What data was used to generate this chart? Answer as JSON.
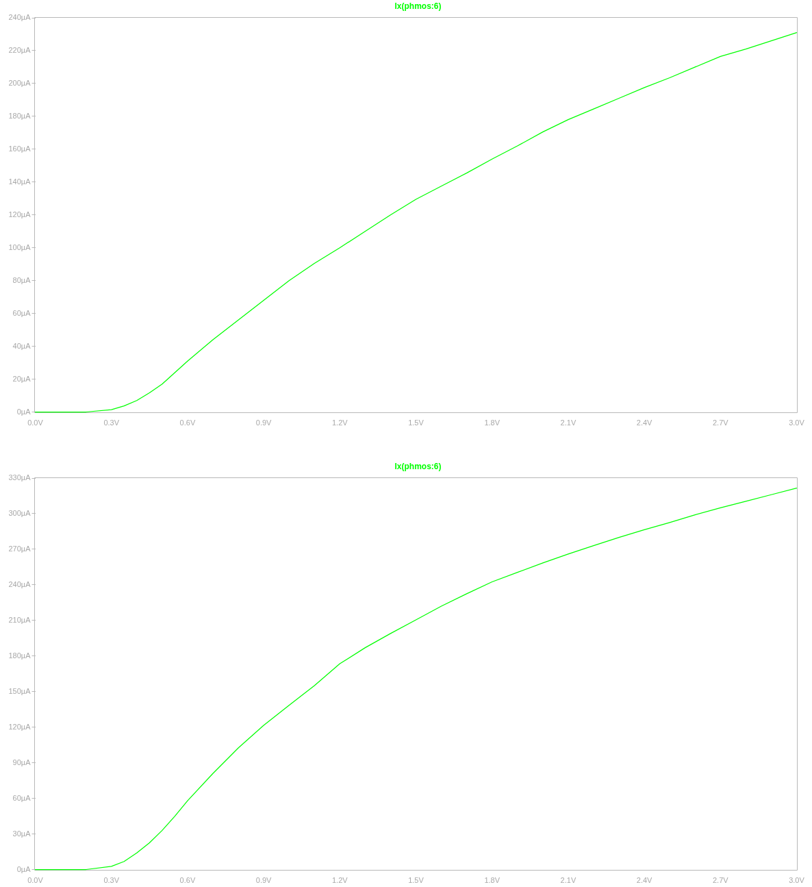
{
  "chart_data": [
    {
      "type": "line",
      "legend": "top",
      "grid": false,
      "x": [
        0,
        0.1,
        0.2,
        0.3,
        0.35,
        0.4,
        0.45,
        0.5,
        0.55,
        0.6,
        0.7,
        0.8,
        0.9,
        1.0,
        1.1,
        1.2,
        1.3,
        1.4,
        1.5,
        1.6,
        1.7,
        1.8,
        1.9,
        2.0,
        2.1,
        2.2,
        2.3,
        2.4,
        2.5,
        2.6,
        2.7,
        2.8,
        2.9,
        3.0
      ],
      "series": [
        {
          "name": "Ix(phmos:6)",
          "color": "#00ff00",
          "values": [
            0,
            0,
            0,
            1.4,
            3.7,
            7,
            11.7,
            17,
            24,
            31,
            44,
            56,
            68,
            80,
            90.5,
            100,
            110,
            120,
            129.5,
            137.5,
            145.5,
            154,
            162,
            170.5,
            178,
            184.5,
            191,
            197.5,
            203.5,
            210,
            216.5,
            221,
            226,
            231
          ]
        }
      ],
      "xlim": [
        0,
        3
      ],
      "xticks": [
        {
          "value": 0,
          "label": "0.0V"
        },
        {
          "value": 0.3,
          "label": "0.3V"
        },
        {
          "value": 0.6,
          "label": "0.6V"
        },
        {
          "value": 0.9,
          "label": "0.9V"
        },
        {
          "value": 1.2,
          "label": "1.2V"
        },
        {
          "value": 1.5,
          "label": "1.5V"
        },
        {
          "value": 1.8,
          "label": "1.8V"
        },
        {
          "value": 2.1,
          "label": "2.1V"
        },
        {
          "value": 2.4,
          "label": "2.4V"
        },
        {
          "value": 2.7,
          "label": "2.7V"
        },
        {
          "value": 3.0,
          "label": "3.0V"
        }
      ],
      "ylim": [
        0,
        240
      ],
      "yticks": [
        {
          "value": 0,
          "label": "0µA"
        },
        {
          "value": 20,
          "label": "20µA"
        },
        {
          "value": 40,
          "label": "40µA"
        },
        {
          "value": 60,
          "label": "60µA"
        },
        {
          "value": 80,
          "label": "80µA"
        },
        {
          "value": 100,
          "label": "100µA"
        },
        {
          "value": 120,
          "label": "120µA"
        },
        {
          "value": 140,
          "label": "140µA"
        },
        {
          "value": 160,
          "label": "160µA"
        },
        {
          "value": 180,
          "label": "180µA"
        },
        {
          "value": 200,
          "label": "200µA"
        },
        {
          "value": 220,
          "label": "220µA"
        },
        {
          "value": 240,
          "label": "240µA"
        }
      ]
    },
    {
      "type": "line",
      "legend": "top",
      "grid": false,
      "x": [
        0,
        0.1,
        0.2,
        0.3,
        0.35,
        0.4,
        0.45,
        0.5,
        0.55,
        0.6,
        0.7,
        0.8,
        0.9,
        1.0,
        1.1,
        1.2,
        1.3,
        1.4,
        1.5,
        1.6,
        1.7,
        1.8,
        1.9,
        2.0,
        2.1,
        2.2,
        2.3,
        2.4,
        2.5,
        2.6,
        2.7,
        2.8,
        2.9,
        3.0
      ],
      "series": [
        {
          "name": "Ix(phmos:6)",
          "color": "#00ff00",
          "values": [
            0,
            0,
            0,
            2.7,
            6.8,
            14,
            22.5,
            33,
            45,
            58,
            81,
            102.5,
            121.5,
            138.5,
            155,
            173.5,
            187,
            199,
            210.5,
            222,
            232.5,
            242.5,
            250.5,
            258.5,
            266,
            273,
            280,
            286.5,
            292.5,
            299,
            305,
            310.5,
            316,
            321.5
          ]
        }
      ],
      "xlim": [
        0,
        3
      ],
      "xticks": [
        {
          "value": 0,
          "label": "0.0V"
        },
        {
          "value": 0.3,
          "label": "0.3V"
        },
        {
          "value": 0.6,
          "label": "0.6V"
        },
        {
          "value": 0.9,
          "label": "0.9V"
        },
        {
          "value": 1.2,
          "label": "1.2V"
        },
        {
          "value": 1.5,
          "label": "1.5V"
        },
        {
          "value": 1.8,
          "label": "1.8V"
        },
        {
          "value": 2.1,
          "label": "2.1V"
        },
        {
          "value": 2.4,
          "label": "2.4V"
        },
        {
          "value": 2.7,
          "label": "2.7V"
        },
        {
          "value": 3.0,
          "label": "3.0V"
        }
      ],
      "ylim": [
        0,
        330
      ],
      "yticks": [
        {
          "value": 0,
          "label": "0µA"
        },
        {
          "value": 30,
          "label": "30µA"
        },
        {
          "value": 60,
          "label": "60µA"
        },
        {
          "value": 90,
          "label": "90µA"
        },
        {
          "value": 120,
          "label": "120µA"
        },
        {
          "value": 150,
          "label": "150µA"
        },
        {
          "value": 180,
          "label": "180µA"
        },
        {
          "value": 210,
          "label": "210µA"
        },
        {
          "value": 240,
          "label": "240µA"
        },
        {
          "value": 270,
          "label": "270µA"
        },
        {
          "value": 300,
          "label": "300µA"
        },
        {
          "value": 330,
          "label": "330µA"
        }
      ]
    }
  ]
}
